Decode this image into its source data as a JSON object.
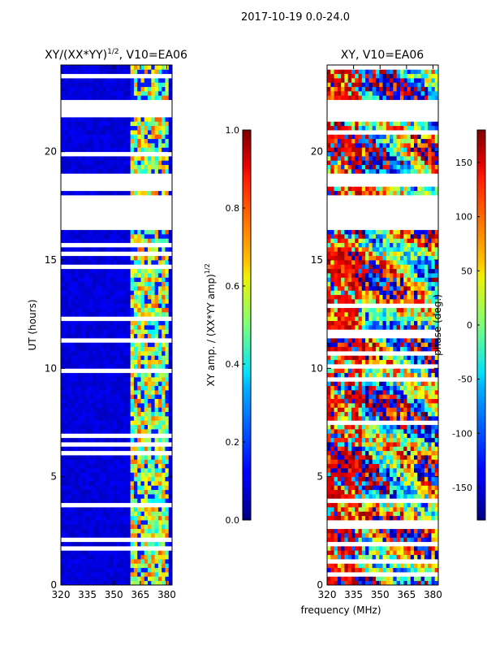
{
  "figure": {
    "suptitle": "2017-10-19 0.0-24.0",
    "shared_xlabel": "frequency (MHz)"
  },
  "chart_data": [
    {
      "type": "heatmap",
      "title": "XY/(XX*YY)",
      "title_exponent": "1/2",
      "title_suffix": ", V10=EA06",
      "xlabel": "",
      "ylabel": "UT (hours)",
      "x_ticks": [
        "320",
        "335",
        "350",
        "365",
        "380"
      ],
      "x_tick_values": [
        320,
        335,
        350,
        365,
        380
      ],
      "y_ticks": [
        "0",
        "5",
        "10",
        "15",
        "20"
      ],
      "y_tick_values": [
        0,
        5,
        10,
        15,
        20
      ],
      "xlim": [
        320,
        383
      ],
      "ylim": [
        0,
        24
      ],
      "colorbar": {
        "label": "XY amp. / (XX*YY amp)",
        "label_exponent": "1/2",
        "range": [
          0.0,
          1.0
        ],
        "ticks": [
          "0.0",
          "0.2",
          "0.4",
          "0.6",
          "0.8",
          "1.0"
        ],
        "tick_values": [
          0.0,
          0.2,
          0.4,
          0.6,
          0.8,
          1.0
        ],
        "colormap": "jet"
      },
      "flagged_time_ranges_hours": [
        [
          16.5,
          18.0
        ],
        [
          18.4,
          19.0
        ],
        [
          21.6,
          22.3
        ]
      ],
      "active_freq_band_mhz": [
        360,
        382
      ]
    },
    {
      "type": "heatmap",
      "title": "XY, V10=EA06",
      "xlabel": "frequency (MHz)",
      "ylabel": "",
      "x_ticks": [
        "320",
        "335",
        "350",
        "365",
        "380"
      ],
      "x_tick_values": [
        320,
        335,
        350,
        365,
        380
      ],
      "y_ticks": [
        "0",
        "5",
        "10",
        "15",
        "20"
      ],
      "y_tick_values": [
        0,
        5,
        10,
        15,
        20
      ],
      "xlim": [
        320,
        383
      ],
      "ylim": [
        0,
        24
      ],
      "colorbar": {
        "label": "phase (deg.)",
        "range": [
          -180,
          180
        ],
        "ticks": [
          "-150",
          "-100",
          "-50",
          "0",
          "50",
          "100",
          "150"
        ],
        "tick_values": [
          -150,
          -100,
          -50,
          0,
          50,
          100,
          150
        ],
        "colormap": "jet"
      },
      "flagged_time_ranges_hours": [
        [
          16.5,
          18.0
        ],
        [
          18.4,
          19.0
        ],
        [
          21.6,
          22.3
        ]
      ]
    }
  ]
}
